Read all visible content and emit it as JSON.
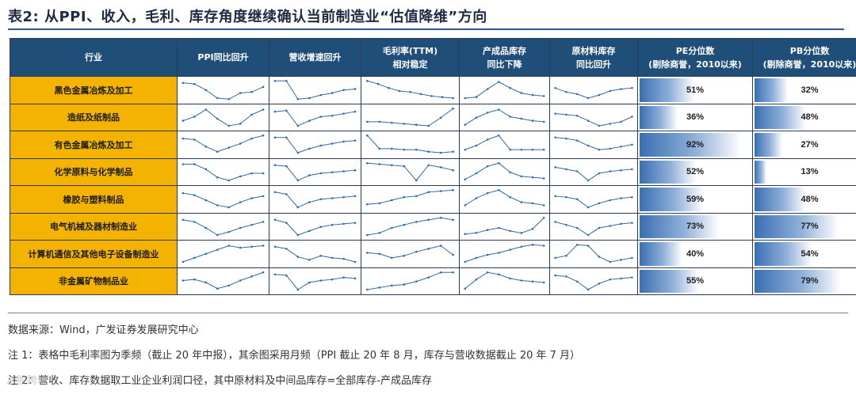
{
  "title": "表2: 从PPI、收入，毛利、库存角度继续确认当前制造业“估值降维”方向",
  "headers": {
    "industry": "行业",
    "ppi": "PPI同比回升",
    "revenue": "营收增速回升",
    "margin_line1": "毛利率(TTM)",
    "margin_line2": "相对稳定",
    "finished_line1": "产成品库存",
    "finished_line2": "同比下降",
    "raw_line1": "原材料库存",
    "raw_line2": "同比回升",
    "pe_line1": "PE分位数",
    "pe_line2": "(剔除商誉，2010以来)",
    "pb_line1": "PB分位数",
    "pb_line2": "(剔除商誉，2010以来)"
  },
  "colors": {
    "header_bg": "#1f4e79",
    "industry_bg": "#f5b301",
    "sparkline": "#2e6aa8",
    "bar": "#3a6fb3"
  },
  "rows": [
    {
      "industry": "黑色金属冶炼及加工",
      "pe": "51%",
      "pe_value": 51,
      "pb": "32%",
      "pb_value": 32,
      "spark": {
        "ppi": [
          0.85,
          0.8,
          0.5,
          0.1,
          0.05,
          0.35,
          0.4,
          0.65
        ],
        "rev": [
          0.95,
          0.95,
          0.05,
          0.1,
          0.25,
          0.35,
          0.5,
          0.55
        ],
        "margin": [
          0.95,
          0.8,
          0.6,
          0.45,
          0.4,
          0.3,
          0.2,
          0.15,
          0.1
        ],
        "fin": [
          0.1,
          0.15,
          0.55,
          0.9,
          0.6,
          0.35,
          0.25,
          0.2
        ],
        "raw": [
          0.6,
          0.4,
          0.3,
          0.1,
          0.25,
          0.45,
          0.55,
          0.6
        ]
      }
    },
    {
      "industry": "造纸及纸制品",
      "pe": "36%",
      "pe_value": 36,
      "pb": "48%",
      "pb_value": 48,
      "spark": {
        "ppi": [
          0.35,
          0.55,
          0.9,
          0.45,
          0.1,
          0.2,
          0.65,
          0.9
        ],
        "rev": [
          0.8,
          0.85,
          0.1,
          0.35,
          0.55,
          0.6,
          0.7,
          0.8
        ],
        "margin": [
          0.3,
          0.3,
          0.25,
          0.2,
          0.15,
          0.1,
          0.5,
          0.95
        ],
        "fin": [
          0.15,
          0.5,
          0.75,
          0.9,
          0.55,
          0.45,
          0.35,
          0.3
        ],
        "raw": [
          0.7,
          0.65,
          0.6,
          0.35,
          0.1,
          0.2,
          0.3,
          0.55
        ]
      }
    },
    {
      "industry": "有色金属冶炼及加工",
      "pe": "92%",
      "pe_value": 92,
      "pb": "27%",
      "pb_value": 27,
      "spark": {
        "ppi": [
          0.8,
          0.75,
          0.4,
          0.15,
          0.35,
          0.55,
          0.8,
          0.95
        ],
        "rev": [
          0.85,
          0.85,
          0.1,
          0.3,
          0.45,
          0.55,
          0.65,
          0.7
        ],
        "margin": [
          0.95,
          0.3,
          0.3,
          0.25,
          0.25,
          0.15,
          0.1,
          0.15
        ],
        "fin": [
          0.25,
          0.45,
          0.75,
          0.95,
          0.25,
          0.25,
          0.25,
          0.25
        ],
        "raw": [
          0.85,
          0.8,
          0.7,
          0.45,
          0.25,
          0.3,
          0.4,
          0.5
        ]
      }
    },
    {
      "industry": "化学原料与化学制品",
      "pe": "52%",
      "pe_value": 52,
      "pb": "13%",
      "pb_value": 13,
      "spark": {
        "ppi": [
          0.9,
          0.9,
          0.65,
          0.25,
          0.1,
          0.3,
          0.45,
          0.45
        ],
        "rev": [
          0.85,
          0.8,
          0.1,
          0.35,
          0.45,
          0.5,
          0.55,
          0.6
        ],
        "margin": [
          0.95,
          0.9,
          0.85,
          0.8,
          0.1,
          0.85,
          0.75,
          0.6
        ],
        "fin": [
          0.15,
          0.45,
          0.8,
          0.95,
          0.5,
          0.3,
          0.25,
          0.2
        ],
        "raw": [
          0.75,
          0.65,
          0.55,
          0.1,
          0.45,
          0.55,
          0.6,
          0.65
        ]
      }
    },
    {
      "industry": "橡胶与塑料制品",
      "pe": "59%",
      "pe_value": 59,
      "pb": "48%",
      "pb_value": 48,
      "spark": {
        "ppi": [
          0.8,
          0.7,
          0.45,
          0.2,
          0.1,
          0.35,
          0.55,
          0.65
        ],
        "rev": [
          0.85,
          0.75,
          0.1,
          0.35,
          0.5,
          0.55,
          0.6,
          0.65
        ],
        "margin": [
          0.25,
          0.3,
          0.45,
          0.6,
          0.65,
          0.85,
          0.9,
          0.95
        ],
        "fin": [
          0.2,
          0.55,
          0.8,
          0.95,
          0.6,
          0.35,
          0.3,
          0.2
        ],
        "raw": [
          0.65,
          0.6,
          0.5,
          0.1,
          0.3,
          0.45,
          0.55,
          0.6
        ]
      }
    },
    {
      "industry": "电气机械及器材制造业",
      "pe": "73%",
      "pe_value": 73,
      "pb": "77%",
      "pb_value": 77,
      "spark": {
        "ppi": [
          0.85,
          0.75,
          0.45,
          0.1,
          0.25,
          0.45,
          0.6,
          0.75
        ],
        "rev": [
          0.85,
          0.7,
          0.1,
          0.3,
          0.5,
          0.6,
          0.65,
          0.7
        ],
        "margin": [
          0.1,
          0.2,
          0.45,
          0.6,
          0.75,
          0.85,
          0.95,
          0.85
        ],
        "fin": [
          0.15,
          0.2,
          0.35,
          0.45,
          0.3,
          0.2,
          0.4,
          0.95
        ],
        "raw": [
          0.75,
          0.6,
          0.45,
          0.1,
          0.45,
          0.55,
          0.65,
          0.7
        ]
      }
    },
    {
      "industry": "计算机通信及其他电子设备制造业",
      "pe": "40%",
      "pe_value": 40,
      "pb": "54%",
      "pb_value": 54,
      "spark": {
        "ppi": [
          0.1,
          0.3,
          0.5,
          0.7,
          0.9,
          0.8,
          0.85,
          0.9
        ],
        "rev": [
          0.85,
          0.75,
          0.35,
          0.2,
          0.4,
          0.3,
          0.25,
          0.1
        ],
        "margin": [
          0.55,
          0.5,
          0.3,
          0.4,
          0.6,
          0.75,
          0.9,
          0.45
        ],
        "fin": [
          0.1,
          0.3,
          0.45,
          0.55,
          0.7,
          0.85,
          0.95,
          0.9
        ],
        "raw": [
          0.3,
          0.4,
          0.95,
          0.9,
          0.35,
          0.1,
          0.2,
          0.3
        ]
      }
    },
    {
      "industry": "非金属矿物制品业",
      "pe": "55%",
      "pe_value": 55,
      "pb": "79%",
      "pb_value": 79,
      "spark": {
        "ppi": [
          0.55,
          0.6,
          0.45,
          0.15,
          0.3,
          0.55,
          0.75,
          0.95
        ],
        "rev": [
          0.85,
          0.8,
          0.1,
          0.45,
          0.55,
          0.6,
          0.7,
          0.65
        ],
        "margin": [
          0.1,
          0.2,
          0.3,
          0.35,
          0.5,
          0.7,
          0.95,
          0.95
        ],
        "fin": [
          0.15,
          0.6,
          0.95,
          0.85,
          0.65,
          0.55,
          0.5,
          0.45
        ],
        "raw": [
          0.8,
          0.75,
          0.5,
          0.1,
          0.4,
          0.6,
          0.65,
          0.7
        ]
      }
    }
  ],
  "notes": {
    "source": "数据来源：Wind，广发证券发展研究中心",
    "note1": "注 1：表格中毛利率图为季频（截止 20 年中报），其余图采用月频（PPI 截止 20 年 8 月，库存与营收数据截止 20 年 7 月）",
    "note2": "注 2：营收、库存数据取工业企业利润口径，其中原材料及中间品库存=全部库存-产成品库存"
  },
  "watermark": "八股跨境"
}
